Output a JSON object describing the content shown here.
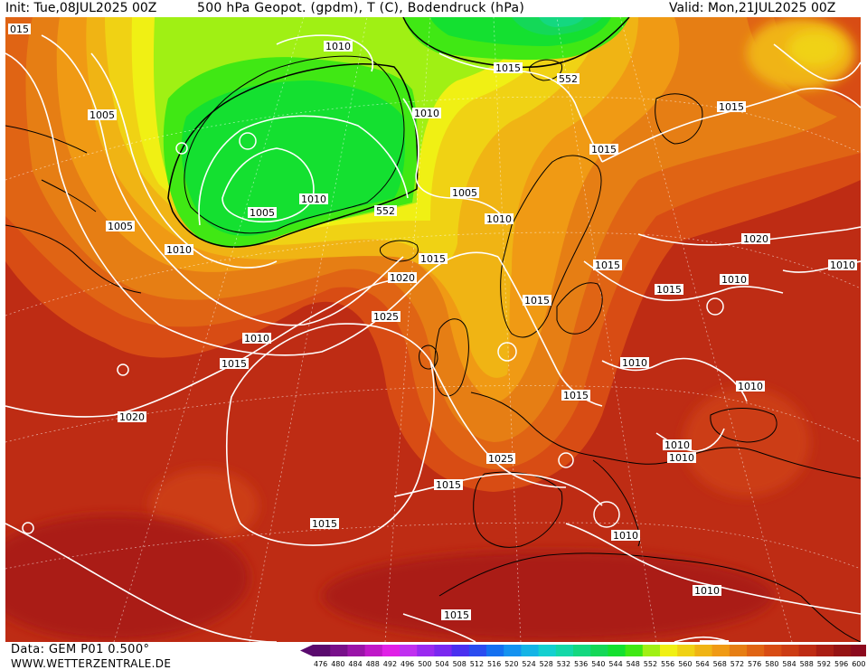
{
  "header": {
    "init": "Init: Tue,08JUL2025 00Z",
    "title": "500 hPa Geopot. (gpdm), T (C), Bodendruck (hPa)",
    "valid": "Valid: Mon,21JUL2025 00Z"
  },
  "footer": {
    "data_source": "Data: GEM P01 0.500°",
    "website": "WWW.WETTERZENTRALE.DE"
  },
  "colorbar": {
    "ticks": [
      "476",
      "480",
      "484",
      "488",
      "492",
      "496",
      "500",
      "504",
      "508",
      "512",
      "516",
      "520",
      "524",
      "528",
      "532",
      "536",
      "540",
      "544",
      "548",
      "552",
      "556",
      "560",
      "564",
      "568",
      "572",
      "576",
      "580",
      "584",
      "588",
      "592",
      "596",
      "600"
    ],
    "colors": [
      "#5a0a6e",
      "#78108a",
      "#9a14a8",
      "#c018c8",
      "#e020e6",
      "#c030f0",
      "#9a2af0",
      "#7a28f0",
      "#4a30f0",
      "#2a4cf0",
      "#1470f0",
      "#1492f0",
      "#14b4e6",
      "#14d0d0",
      "#14d8a8",
      "#14d880",
      "#14d858",
      "#14e030",
      "#40e814",
      "#a0f014",
      "#f0f014",
      "#f0d214",
      "#f0b414",
      "#f09a14",
      "#e67e14",
      "#e06414",
      "#d84c14",
      "#cc3c14",
      "#be2c14",
      "#aa1e14",
      "#961414",
      "#8c0a1e"
    ]
  },
  "map": {
    "pressure_labels": [
      "015",
      "1010",
      "1015",
      "1005",
      "1010",
      "1005",
      "1010",
      "1005",
      "1010",
      "552",
      "1005",
      "1010",
      "1015",
      "552",
      "1015",
      "1020",
      "1025",
      "1015",
      "1010",
      "1015",
      "1015",
      "1015",
      "1015",
      "1010",
      "1015",
      "1010",
      "1010",
      "1015",
      "1020",
      "1025",
      "1020",
      "1015",
      "1010",
      "1010",
      "1010",
      "1010",
      "1015",
      "1015",
      "1010",
      "1005"
    ]
  }
}
